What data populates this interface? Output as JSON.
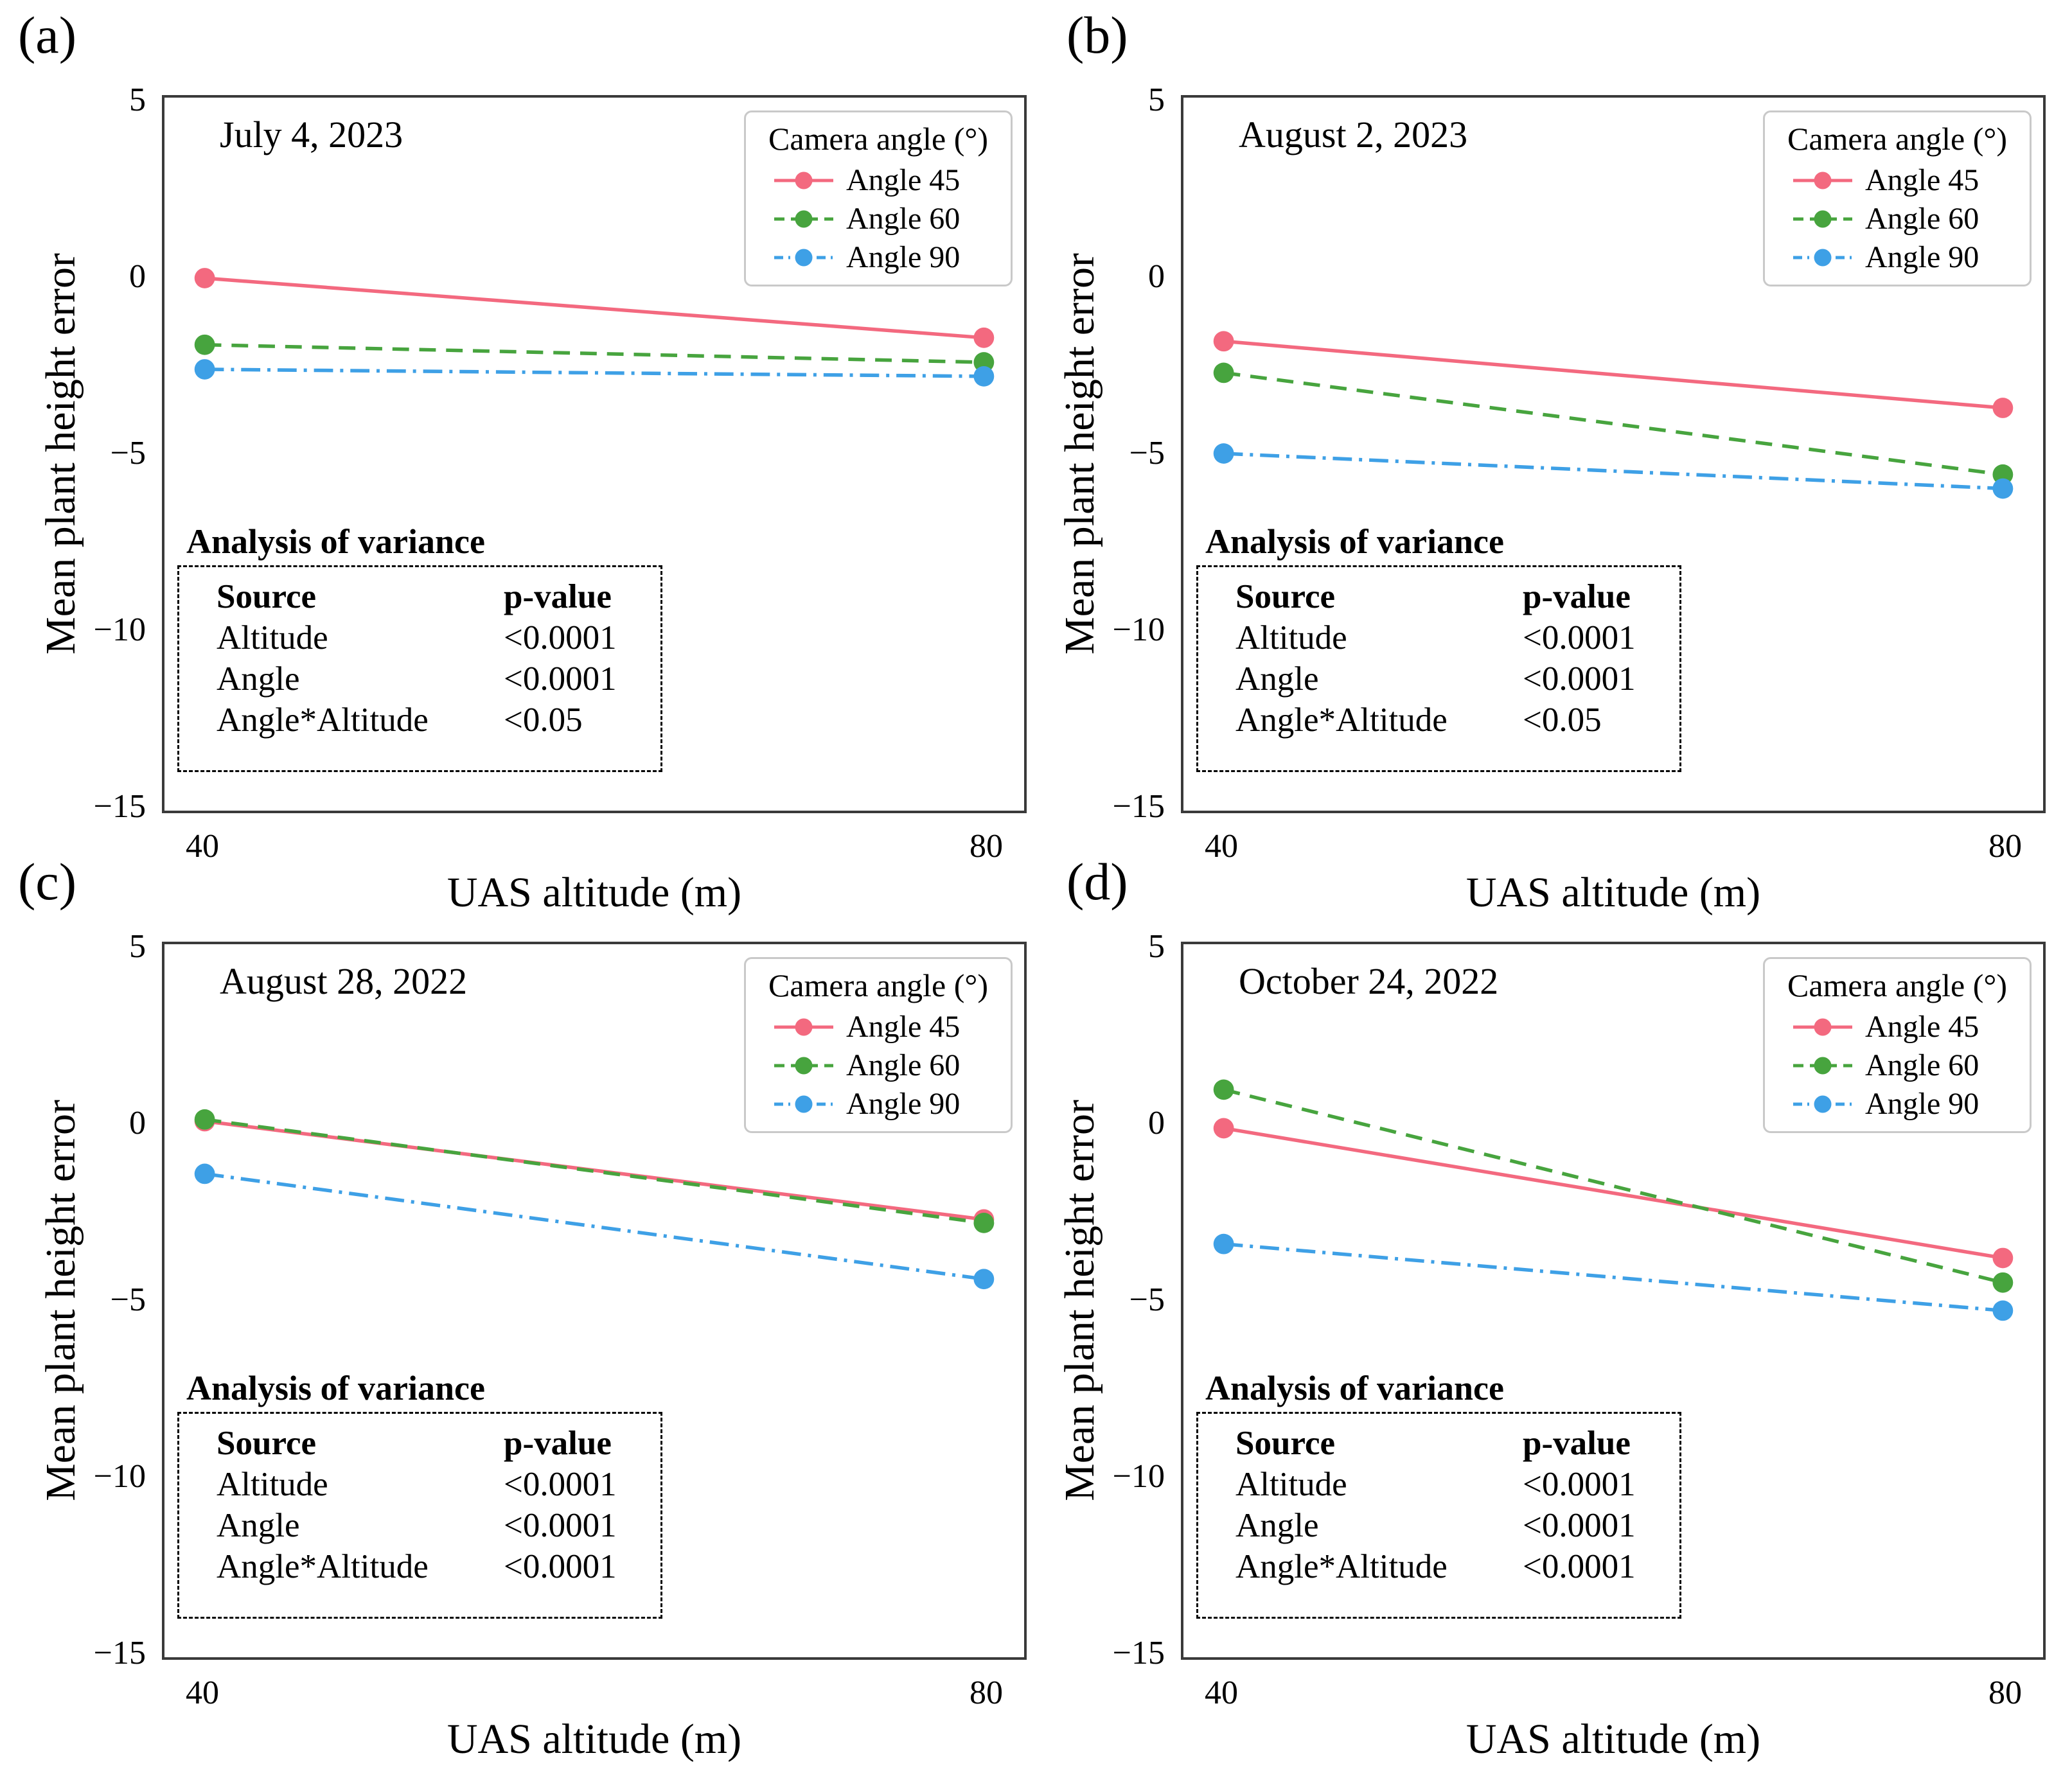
{
  "figure": {
    "background": "#ffffff",
    "plot_border_color": "#3a3a3a",
    "colors": {
      "angle45": "#f3697f",
      "angle60": "#47a43e",
      "angle90": "#3ea0e6"
    }
  },
  "chart_data": [
    {
      "panel_label": "(a)",
      "type": "line",
      "title": "July 4, 2023",
      "xlabel": "UAS altitude (m)",
      "ylabel": "Mean plant height error",
      "x": [
        40,
        80
      ],
      "xlim": [
        40,
        80
      ],
      "ylim": [
        -15,
        5
      ],
      "grid": false,
      "xticks": {
        "values": [
          40,
          80
        ],
        "labels": [
          "40",
          "80"
        ]
      },
      "yticks": {
        "values": [
          5,
          0,
          -5,
          -10,
          -15
        ],
        "labels": [
          "5",
          "0",
          "−5",
          "−10",
          "−15"
        ]
      },
      "legend": {
        "title": "Camera angle (°)",
        "position": "upper right"
      },
      "series": [
        {
          "name": "Angle 45",
          "color": "#f3697f",
          "style": "solid",
          "values": [
            0.0,
            -1.7
          ]
        },
        {
          "name": "Angle 60",
          "color": "#47a43e",
          "style": "dashed",
          "values": [
            -1.9,
            -2.4
          ]
        },
        {
          "name": "Angle 90",
          "color": "#3ea0e6",
          "style": "dashdot",
          "values": [
            -2.6,
            -2.8
          ]
        }
      ],
      "anova": {
        "title": "Analysis of variance",
        "headers": {
          "source": "Source",
          "p": "p-value"
        },
        "rows": [
          {
            "source": "Altitude",
            "p": "<0.0001"
          },
          {
            "source": "Angle",
            "p": "<0.0001"
          },
          {
            "source": "Angle*Altitude",
            "p": "<0.05"
          }
        ]
      }
    },
    {
      "panel_label": "(b)",
      "type": "line",
      "title": "August 2, 2023",
      "xlabel": "UAS altitude (m)",
      "ylabel": "Mean plant height error",
      "x": [
        40,
        80
      ],
      "xlim": [
        40,
        80
      ],
      "ylim": [
        -15,
        5
      ],
      "grid": false,
      "xticks": {
        "values": [
          40,
          80
        ],
        "labels": [
          "40",
          "80"
        ]
      },
      "yticks": {
        "values": [
          5,
          0,
          -5,
          -10,
          -15
        ],
        "labels": [
          "5",
          "0",
          "−5",
          "−10",
          "−15"
        ]
      },
      "legend": {
        "title": "Camera angle (°)",
        "position": "upper right"
      },
      "series": [
        {
          "name": "Angle 45",
          "color": "#f3697f",
          "style": "solid",
          "values": [
            -1.8,
            -3.7
          ]
        },
        {
          "name": "Angle 60",
          "color": "#47a43e",
          "style": "dashed",
          "values": [
            -2.7,
            -5.6
          ]
        },
        {
          "name": "Angle 90",
          "color": "#3ea0e6",
          "style": "dashdot",
          "values": [
            -5.0,
            -6.0
          ]
        }
      ],
      "anova": {
        "title": "Analysis of variance",
        "headers": {
          "source": "Source",
          "p": "p-value"
        },
        "rows": [
          {
            "source": "Altitude",
            "p": "<0.0001"
          },
          {
            "source": "Angle",
            "p": "<0.0001"
          },
          {
            "source": "Angle*Altitude",
            "p": "<0.05"
          }
        ]
      }
    },
    {
      "panel_label": "(c)",
      "type": "line",
      "title": "August 28, 2022",
      "xlabel": "UAS altitude (m)",
      "ylabel": "Mean plant height error",
      "x": [
        40,
        80
      ],
      "xlim": [
        40,
        80
      ],
      "ylim": [
        -15,
        5
      ],
      "grid": false,
      "xticks": {
        "values": [
          40,
          80
        ],
        "labels": [
          "40",
          "80"
        ]
      },
      "yticks": {
        "values": [
          5,
          0,
          -5,
          -10,
          -15
        ],
        "labels": [
          "5",
          "0",
          "−5",
          "−10",
          "−15"
        ]
      },
      "legend": {
        "title": "Camera angle (°)",
        "position": "upper right"
      },
      "series": [
        {
          "name": "Angle 45",
          "color": "#f3697f",
          "style": "solid",
          "values": [
            0.1,
            -2.7
          ]
        },
        {
          "name": "Angle 60",
          "color": "#47a43e",
          "style": "dashed",
          "values": [
            0.15,
            -2.8
          ]
        },
        {
          "name": "Angle 90",
          "color": "#3ea0e6",
          "style": "dashdot",
          "values": [
            -1.4,
            -4.4
          ]
        }
      ],
      "anova": {
        "title": "Analysis of variance",
        "headers": {
          "source": "Source",
          "p": "p-value"
        },
        "rows": [
          {
            "source": "Altitude",
            "p": "<0.0001"
          },
          {
            "source": "Angle",
            "p": "<0.0001"
          },
          {
            "source": "Angle*Altitude",
            "p": "<0.0001"
          }
        ]
      }
    },
    {
      "panel_label": "(d)",
      "type": "line",
      "title": "October 24, 2022",
      "xlabel": "UAS altitude (m)",
      "ylabel": "Mean plant height error",
      "x": [
        40,
        80
      ],
      "xlim": [
        40,
        80
      ],
      "ylim": [
        -15,
        5
      ],
      "grid": false,
      "xticks": {
        "values": [
          40,
          80
        ],
        "labels": [
          "40",
          "80"
        ]
      },
      "yticks": {
        "values": [
          5,
          0,
          -5,
          -10,
          -15
        ],
        "labels": [
          "5",
          "0",
          "−5",
          "−10",
          "−15"
        ]
      },
      "legend": {
        "title": "Camera angle (°)",
        "position": "upper right"
      },
      "series": [
        {
          "name": "Angle 45",
          "color": "#f3697f",
          "style": "solid",
          "values": [
            -0.1,
            -3.8
          ]
        },
        {
          "name": "Angle 60",
          "color": "#47a43e",
          "style": "dashed",
          "values": [
            1.0,
            -4.5
          ]
        },
        {
          "name": "Angle 90",
          "color": "#3ea0e6",
          "style": "dashdot",
          "values": [
            -3.4,
            -5.3
          ]
        }
      ],
      "anova": {
        "title": "Analysis of variance",
        "headers": {
          "source": "Source",
          "p": "p-value"
        },
        "rows": [
          {
            "source": "Altitude",
            "p": "<0.0001"
          },
          {
            "source": "Angle",
            "p": "<0.0001"
          },
          {
            "source": "Angle*Altitude",
            "p": "<0.0001"
          }
        ]
      }
    }
  ]
}
